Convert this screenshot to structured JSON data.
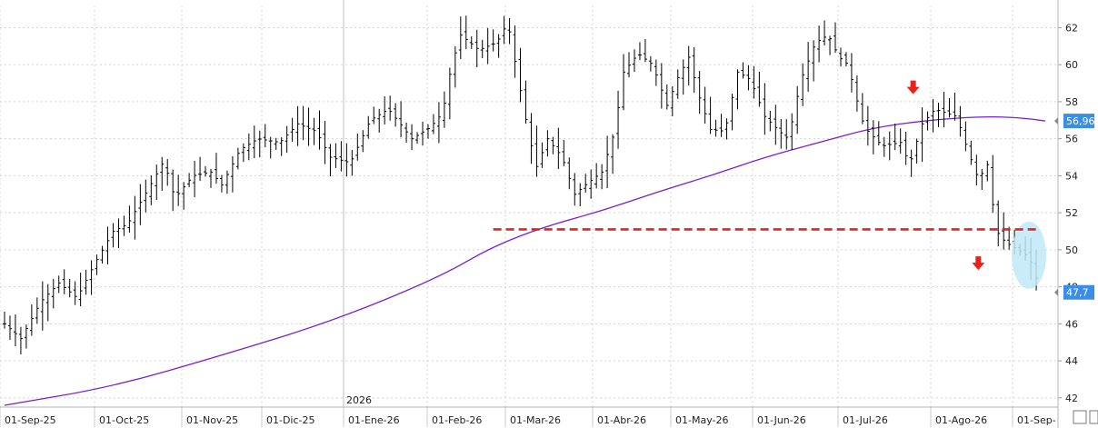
{
  "chart_data": {
    "type": "bar",
    "subtype": "ohlc",
    "year_marker": "2026",
    "x_labels": [
      "01-Sep-25",
      "01-Oct-25",
      "01-Nov-25",
      "01-Dic-25",
      "01-Ene-26",
      "01-Feb-26",
      "01-Mar-26",
      "01-Abr-26",
      "01-May-26",
      "01-Jun-26",
      "01-Jul-26",
      "01-Ago-26",
      "01-Sep-"
    ],
    "y_ticks": [
      42,
      44,
      46,
      48,
      50,
      52,
      54,
      56,
      58,
      60,
      62
    ],
    "ylim": [
      41.5,
      63.2
    ],
    "grid": true,
    "price_series_keypoints": [
      {
        "t": 0,
        "v": 46.0
      },
      {
        "t": 9,
        "v": 45.2
      },
      {
        "t": 20,
        "v": 47.2
      },
      {
        "t": 30,
        "v": 48.2
      },
      {
        "t": 40,
        "v": 47.4
      },
      {
        "t": 50,
        "v": 49.3
      },
      {
        "t": 60,
        "v": 51.0
      },
      {
        "t": 68,
        "v": 51.4
      },
      {
        "t": 80,
        "v": 53.4
      },
      {
        "t": 88,
        "v": 54.8
      },
      {
        "t": 94,
        "v": 52.8
      },
      {
        "t": 104,
        "v": 54.0
      },
      {
        "t": 114,
        "v": 54.2
      },
      {
        "t": 120,
        "v": 53.5
      },
      {
        "t": 130,
        "v": 55.4
      },
      {
        "t": 140,
        "v": 56.0
      },
      {
        "t": 152,
        "v": 55.8
      },
      {
        "t": 162,
        "v": 56.8
      },
      {
        "t": 172,
        "v": 56.4
      },
      {
        "t": 180,
        "v": 55.0
      },
      {
        "t": 191,
        "v": 54.7
      },
      {
        "t": 202,
        "v": 57.0
      },
      {
        "t": 212,
        "v": 57.6
      },
      {
        "t": 225,
        "v": 56.0
      },
      {
        "t": 235,
        "v": 56.6
      },
      {
        "t": 242,
        "v": 57.4
      },
      {
        "t": 247,
        "v": 60.0
      },
      {
        "t": 252,
        "v": 61.6
      },
      {
        "t": 262,
        "v": 60.8
      },
      {
        "t": 272,
        "v": 61.2
      },
      {
        "t": 278,
        "v": 62.3
      },
      {
        "t": 285,
        "v": 58.6
      },
      {
        "t": 290,
        "v": 56.0
      },
      {
        "t": 294,
        "v": 54.5
      },
      {
        "t": 300,
        "v": 56.0
      },
      {
        "t": 308,
        "v": 55.0
      },
      {
        "t": 315,
        "v": 53.0
      },
      {
        "t": 322,
        "v": 53.6
      },
      {
        "t": 330,
        "v": 54.2
      },
      {
        "t": 337,
        "v": 56.4
      },
      {
        "t": 342,
        "v": 59.6
      },
      {
        "t": 350,
        "v": 60.6
      },
      {
        "t": 358,
        "v": 60.0
      },
      {
        "t": 366,
        "v": 57.8
      },
      {
        "t": 372,
        "v": 59.3
      },
      {
        "t": 378,
        "v": 60.4
      },
      {
        "t": 384,
        "v": 58.2
      },
      {
        "t": 390,
        "v": 56.5
      },
      {
        "t": 398,
        "v": 56.4
      },
      {
        "t": 405,
        "v": 59.6
      },
      {
        "t": 412,
        "v": 59.2
      },
      {
        "t": 420,
        "v": 57.2
      },
      {
        "t": 428,
        "v": 56.4
      },
      {
        "t": 433,
        "v": 56.0
      },
      {
        "t": 440,
        "v": 59.2
      },
      {
        "t": 448,
        "v": 61.2
      },
      {
        "t": 455,
        "v": 61.6
      },
      {
        "t": 461,
        "v": 60.4
      },
      {
        "t": 466,
        "v": 60.0
      },
      {
        "t": 470,
        "v": 58.4
      },
      {
        "t": 475,
        "v": 56.6
      },
      {
        "t": 485,
        "v": 55.6
      },
      {
        "t": 495,
        "v": 55.8
      },
      {
        "t": 500,
        "v": 54.6
      },
      {
        "t": 507,
        "v": 56.8
      },
      {
        "t": 514,
        "v": 57.6
      },
      {
        "t": 520,
        "v": 57.4
      },
      {
        "t": 526,
        "v": 57.2
      },
      {
        "t": 532,
        "v": 55.4
      },
      {
        "t": 538,
        "v": 53.8
      },
      {
        "t": 543,
        "v": 54.6
      },
      {
        "t": 548,
        "v": 51.0
      },
      {
        "t": 553,
        "v": 50.4
      },
      {
        "t": 560,
        "v": 50.0
      },
      {
        "t": 566,
        "v": 49.6
      },
      {
        "t": 572,
        "v": 47.9
      }
    ],
    "moving_average": {
      "color": "#7a1fd4",
      "points": [
        {
          "t": 0,
          "v": 41.6
        },
        {
          "t": 60,
          "v": 42.6
        },
        {
          "t": 120,
          "v": 44.3
        },
        {
          "t": 180,
          "v": 46.1
        },
        {
          "t": 240,
          "v": 48.5
        },
        {
          "t": 270,
          "v": 50.2
        },
        {
          "t": 300,
          "v": 51.3
        },
        {
          "t": 330,
          "v": 52.1
        },
        {
          "t": 360,
          "v": 53.1
        },
        {
          "t": 390,
          "v": 54.0
        },
        {
          "t": 420,
          "v": 55.0
        },
        {
          "t": 450,
          "v": 55.8
        },
        {
          "t": 480,
          "v": 56.6
        },
        {
          "t": 510,
          "v": 57.0
        },
        {
          "t": 540,
          "v": 57.2
        },
        {
          "t": 560,
          "v": 57.15
        },
        {
          "t": 575,
          "v": 56.96
        }
      ],
      "last_value_label": "56,96"
    },
    "last_price_label": "47,7",
    "last_price_value": 47.7,
    "support_line": {
      "value": 51.1,
      "t_start": 270,
      "t_end": 570,
      "color": "#e8211b",
      "style": "dashed"
    },
    "annotations": [
      {
        "kind": "down-arrow",
        "t": 502,
        "v": 58.7,
        "color": "#e8211b"
      },
      {
        "kind": "down-arrow",
        "t": 538,
        "v": 49.2,
        "color": "#e8211b"
      },
      {
        "kind": "highlight-ellipse",
        "t": 566,
        "v": 49.7,
        "color": "#bfe9f7"
      }
    ],
    "colors": {
      "bars": "#000000",
      "label_bg": "#3a8ee6",
      "label_text": "#ffffff"
    }
  }
}
